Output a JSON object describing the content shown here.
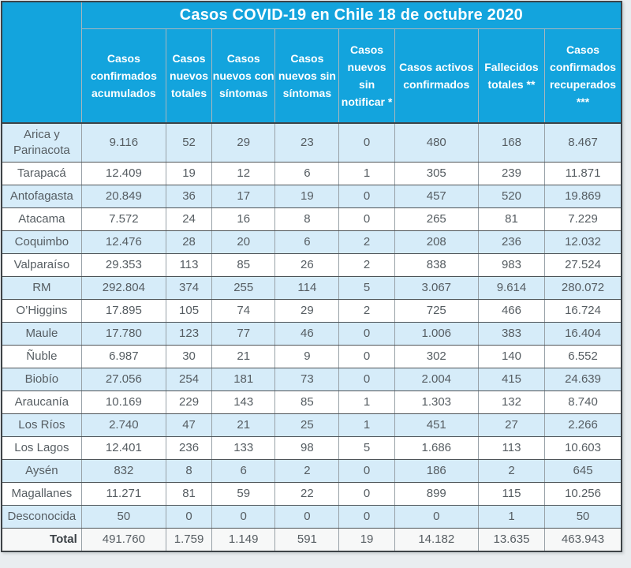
{
  "chart_data": {
    "type": "table",
    "title": "Casos COVID-19 en Chile 18 de octubre 2020",
    "columns": [
      "Casos confirmados acumulados",
      "Casos nuevos totales",
      "Casos nuevos con síntomas",
      "Casos nuevos sin síntomas",
      "Casos nuevos sin notificar *",
      "Casos activos confirmados",
      "Fallecidos totales **",
      "Casos confirmados recuperados ***"
    ],
    "rows": [
      {
        "region": "Arica y Parinacota",
        "values": [
          "9.116",
          "52",
          "29",
          "23",
          "0",
          "480",
          "168",
          "8.467"
        ]
      },
      {
        "region": "Tarapacá",
        "values": [
          "12.409",
          "19",
          "12",
          "6",
          "1",
          "305",
          "239",
          "11.871"
        ]
      },
      {
        "region": "Antofagasta",
        "values": [
          "20.849",
          "36",
          "17",
          "19",
          "0",
          "457",
          "520",
          "19.869"
        ]
      },
      {
        "region": "Atacama",
        "values": [
          "7.572",
          "24",
          "16",
          "8",
          "0",
          "265",
          "81",
          "7.229"
        ]
      },
      {
        "region": "Coquimbo",
        "values": [
          "12.476",
          "28",
          "20",
          "6",
          "2",
          "208",
          "236",
          "12.032"
        ]
      },
      {
        "region": "Valparaíso",
        "values": [
          "29.353",
          "113",
          "85",
          "26",
          "2",
          "838",
          "983",
          "27.524"
        ]
      },
      {
        "region": "RM",
        "values": [
          "292.804",
          "374",
          "255",
          "114",
          "5",
          "3.067",
          "9.614",
          "280.072"
        ]
      },
      {
        "region": "O’Higgins",
        "values": [
          "17.895",
          "105",
          "74",
          "29",
          "2",
          "725",
          "466",
          "16.724"
        ]
      },
      {
        "region": "Maule",
        "values": [
          "17.780",
          "123",
          "77",
          "46",
          "0",
          "1.006",
          "383",
          "16.404"
        ]
      },
      {
        "region": "Ñuble",
        "values": [
          "6.987",
          "30",
          "21",
          "9",
          "0",
          "302",
          "140",
          "6.552"
        ]
      },
      {
        "region": "Biobío",
        "values": [
          "27.056",
          "254",
          "181",
          "73",
          "0",
          "2.004",
          "415",
          "24.639"
        ]
      },
      {
        "region": "Araucanía",
        "values": [
          "10.169",
          "229",
          "143",
          "85",
          "1",
          "1.303",
          "132",
          "8.740"
        ]
      },
      {
        "region": "Los Ríos",
        "values": [
          "2.740",
          "47",
          "21",
          "25",
          "1",
          "451",
          "27",
          "2.266"
        ]
      },
      {
        "region": "Los Lagos",
        "values": [
          "12.401",
          "236",
          "133",
          "98",
          "5",
          "1.686",
          "113",
          "10.603"
        ]
      },
      {
        "region": "Aysén",
        "values": [
          "832",
          "8",
          "6",
          "2",
          "0",
          "186",
          "2",
          "645"
        ]
      },
      {
        "region": "Magallanes",
        "values": [
          "11.271",
          "81",
          "59",
          "22",
          "0",
          "899",
          "115",
          "10.256"
        ]
      },
      {
        "region": "Desconocida",
        "values": [
          "50",
          "0",
          "0",
          "0",
          "0",
          "0",
          "1",
          "50"
        ]
      }
    ],
    "total": {
      "label": "Total",
      "values": [
        "491.760",
        "1.759",
        "1.149",
        "591",
        "19",
        "14.182",
        "13.635",
        "463.943"
      ]
    },
    "layout": {
      "first_row_shade": "alt",
      "alternating_rows": true
    }
  },
  "colors": {
    "header_bg": "#13a4dd",
    "header_text": "#ffffff",
    "row_alt_bg": "#d6ecf9",
    "row_bg": "#ffffff",
    "total_row_bg": "#f7f8f8",
    "cell_text": "#565d62",
    "row_border": "#4e5458",
    "column_border": "#98a1a7",
    "outer_border": "#3e4347",
    "page_margin_bg": "#e9edf0"
  }
}
